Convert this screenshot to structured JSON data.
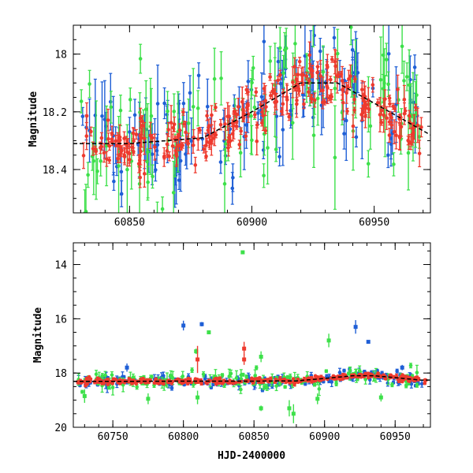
{
  "colors": {
    "blue": "#1f5fd6",
    "green": "#3de04a",
    "red": "#ee3a2e",
    "trend": "#000000"
  },
  "chart_data": [
    {
      "type": "scatter",
      "title": "",
      "xlabel": "",
      "ylabel": "Magnitude",
      "xlim": [
        60827,
        60973
      ],
      "ylim": [
        18.55,
        17.9
      ],
      "y_inverted": true,
      "grid": false,
      "xticks": [
        60850,
        60900,
        60950
      ],
      "xtick_labels": [
        "60850",
        "60900",
        "60950"
      ],
      "yticks": [
        18.0,
        18.2,
        18.4
      ],
      "ytick_labels": [
        "18",
        "18.2",
        "18.4"
      ],
      "x_minor_step": 10,
      "y_minor_step": 0.05,
      "series": [
        {
          "name": "blue",
          "color": "#1f5fd6",
          "n": 130,
          "scatter": 0.09,
          "err": [
            0.03,
            0.14
          ]
        },
        {
          "name": "green",
          "color": "#3de04a",
          "n": 110,
          "scatter": 0.12,
          "err": [
            0.04,
            0.18
          ]
        },
        {
          "name": "red",
          "color": "#ee3a2e",
          "n": 280,
          "scatter": 0.045,
          "err": [
            0.01,
            0.06
          ]
        }
      ],
      "trend_x": [
        60827,
        60850,
        60880,
        60900,
        60920,
        60935,
        60950,
        60973
      ],
      "trend_y": [
        18.31,
        18.31,
        18.29,
        18.2,
        18.1,
        18.1,
        18.17,
        18.28
      ],
      "outliers": []
    },
    {
      "type": "scatter",
      "title": "",
      "xlabel": "HJD-2400000",
      "ylabel": "Magnitude",
      "xlim": [
        60722,
        60975
      ],
      "ylim": [
        20,
        13.2
      ],
      "y_inverted": true,
      "grid": false,
      "xticks": [
        60750,
        60800,
        60850,
        60900,
        60950
      ],
      "xtick_labels": [
        "60750",
        "60800",
        "60850",
        "60900",
        "60950"
      ],
      "yticks": [
        14,
        16,
        18,
        20
      ],
      "ytick_labels": [
        "14",
        "16",
        "18",
        "20"
      ],
      "x_minor_step": 10,
      "y_minor_step": 0.5,
      "series": [
        {
          "name": "blue",
          "color": "#1f5fd6",
          "n": 170,
          "scatter": 0.12,
          "err": [
            0.04,
            0.18
          ]
        },
        {
          "name": "green",
          "color": "#3de04a",
          "n": 140,
          "scatter": 0.18,
          "err": [
            0.05,
            0.28
          ]
        },
        {
          "name": "red",
          "color": "#ee3a2e",
          "n": 340,
          "scatter": 0.05,
          "err": [
            0.02,
            0.08
          ]
        }
      ],
      "trend_x": [
        60727,
        60800,
        60850,
        60880,
        60900,
        60920,
        60935,
        60950,
        60968
      ],
      "trend_y": [
        18.31,
        18.3,
        18.3,
        18.29,
        18.2,
        18.1,
        18.1,
        18.17,
        18.26
      ],
      "outliers": [
        {
          "x": 60842,
          "y": 13.55,
          "err": 0.05,
          "color": "#3de04a"
        },
        {
          "x": 60800,
          "y": 16.25,
          "err": 0.18,
          "color": "#1f5fd6"
        },
        {
          "x": 60813,
          "y": 16.2,
          "err": 0.08,
          "color": "#1f5fd6"
        },
        {
          "x": 60922,
          "y": 16.3,
          "err": 0.25,
          "color": "#1f5fd6"
        },
        {
          "x": 60931,
          "y": 16.85,
          "err": 0.0,
          "color": "#1f5fd6"
        },
        {
          "x": 60903,
          "y": 16.8,
          "err": 0.25,
          "color": "#3de04a"
        },
        {
          "x": 60818,
          "y": 16.5,
          "err": 0.0,
          "color": "#3de04a"
        },
        {
          "x": 60809,
          "y": 17.2,
          "err": 0.1,
          "color": "#3de04a"
        },
        {
          "x": 60843,
          "y": 17.1,
          "err": 0.25,
          "color": "#ee3a2e"
        },
        {
          "x": 60843,
          "y": 17.5,
          "err": 0.2,
          "color": "#ee3a2e"
        },
        {
          "x": 60810,
          "y": 17.5,
          "err": 0.5,
          "color": "#ee3a2e"
        },
        {
          "x": 60760,
          "y": 17.8,
          "err": 0.15,
          "color": "#1f5fd6"
        },
        {
          "x": 60875,
          "y": 19.3,
          "err": 0.3,
          "color": "#3de04a"
        },
        {
          "x": 60878,
          "y": 19.5,
          "err": 0.35,
          "color": "#3de04a"
        },
        {
          "x": 60855,
          "y": 19.3,
          "err": 0.1,
          "color": "#3de04a"
        },
        {
          "x": 60730,
          "y": 18.85,
          "err": 0.25,
          "color": "#3de04a"
        },
        {
          "x": 60775,
          "y": 18.95,
          "err": 0.2,
          "color": "#3de04a"
        },
        {
          "x": 60810,
          "y": 18.9,
          "err": 0.25,
          "color": "#3de04a"
        },
        {
          "x": 60895,
          "y": 18.95,
          "err": 0.2,
          "color": "#3de04a"
        },
        {
          "x": 60855,
          "y": 17.4,
          "err": 0.2,
          "color": "#3de04a"
        },
        {
          "x": 60955,
          "y": 17.8,
          "err": 0.1,
          "color": "#1f5fd6"
        },
        {
          "x": 60940,
          "y": 18.9,
          "err": 0.15,
          "color": "#3de04a"
        }
      ]
    }
  ]
}
